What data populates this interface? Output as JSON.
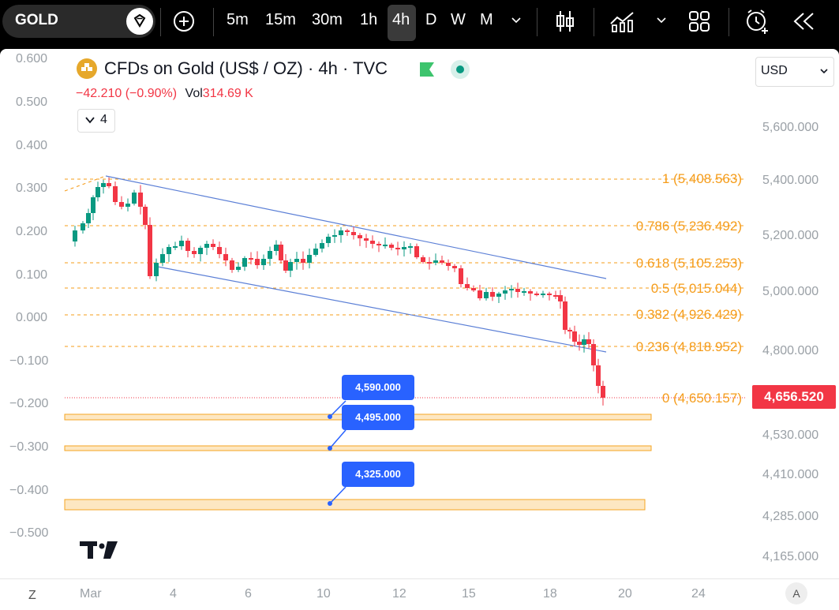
{
  "toolbar": {
    "symbol": "GOLD",
    "intervals": [
      "5m",
      "15m",
      "30m",
      "1h",
      "4h",
      "D",
      "W",
      "M"
    ],
    "active_interval": "4h"
  },
  "header": {
    "title": "CFDs on Gold (US$ / OZ) · 4h · TVC",
    "change": "−42.210 (−0.90%)",
    "vol_label": "Vol",
    "vol_value": "314.69 K",
    "indicators_count": "4",
    "currency": "USD"
  },
  "left_axis": [
    "0.600",
    "0.500",
    "0.400",
    "0.300",
    "0.200",
    "0.100",
    "0.000",
    "−0.100",
    "−0.200",
    "−0.300",
    "−0.400",
    "−0.500"
  ],
  "right_axis": [
    "5,600.000",
    "5,400.000",
    "5,200.000",
    "5,000.000",
    "4,800.000",
    "4,530.000",
    "4,410.000",
    "4,285.000",
    "4,165.000"
  ],
  "x_axis": [
    "Mar",
    "4",
    "6",
    "10",
    "12",
    "15",
    "18",
    "20",
    "24"
  ],
  "bottom_left": "Z",
  "bottom_right": "A",
  "last_price": "4,656.520",
  "fib_levels": [
    {
      "label": "1 (5,408.563)"
    },
    {
      "label": "0.786 (5,236.492)"
    },
    {
      "label": "0.618 (5,105.253)"
    },
    {
      "label": "0.5 (5,015.044)"
    },
    {
      "label": "0.382 (4,926.429)"
    },
    {
      "label": "0.236 (4,818.952)"
    },
    {
      "label": "0 (4,650.157)"
    }
  ],
  "targets": [
    "4,590.000",
    "4,495.000",
    "4,325.000"
  ],
  "colors": {
    "up": "#089981",
    "down": "#f23645",
    "fib": "#f59c1a",
    "channel": "#5b7fd6",
    "callout": "#2962ff"
  }
}
